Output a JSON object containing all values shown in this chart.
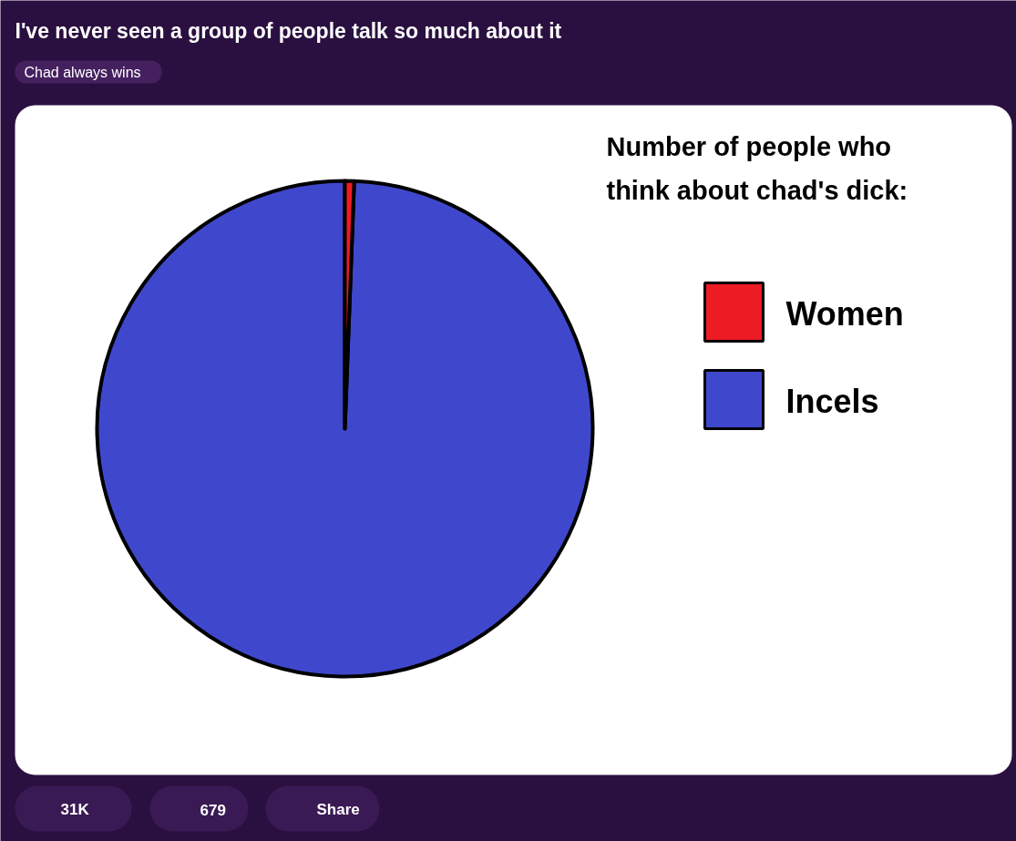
{
  "chart_data": {
    "type": "pie",
    "title": "I've never seen a group of people talk so much about it",
    "subtitle": "Chad always wins",
    "legend_title": "Number of people who think about chad's dick:",
    "categories": [
      "Women",
      "Incels"
    ],
    "values": [
      0.6,
      99.4
    ],
    "colors": [
      "#ed1c24",
      "#3f48cc"
    ],
    "legend": "top right",
    "annotations": [
      "31K",
      "679",
      "Share"
    ]
  }
}
